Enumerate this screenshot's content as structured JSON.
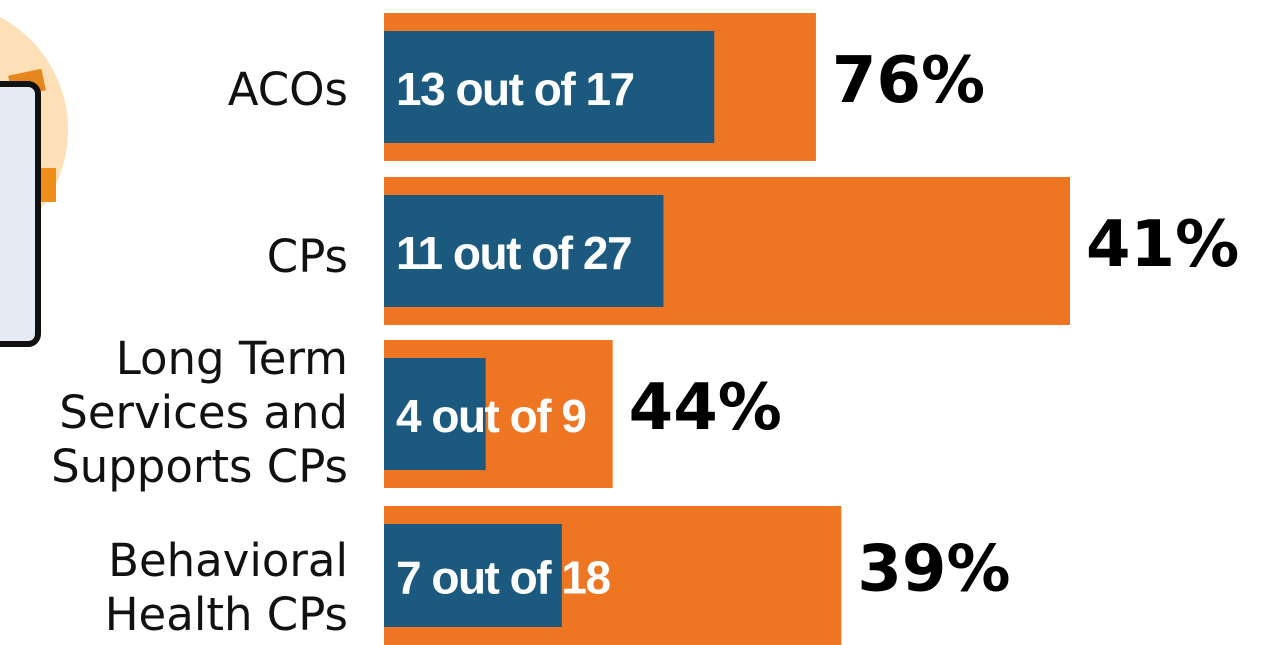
{
  "chart_data": {
    "type": "bar",
    "categories": [
      "ACOs",
      "CPs",
      "Long Term\nServices and\nSupports CPs",
      "Behavioral\nHealth CPs"
    ],
    "totals": [
      17,
      27,
      9,
      18
    ],
    "counts": [
      13,
      11,
      4,
      7
    ],
    "count_labels": [
      "13 out of 17",
      "11 out of 27",
      "4 out of 9",
      "7 out of 18"
    ],
    "percents": [
      76,
      41,
      44,
      39
    ],
    "percent_labels": [
      "76%",
      "41%",
      "44%",
      "39%"
    ],
    "total_color": "#ee7623",
    "count_color": "#1b5a7e"
  }
}
